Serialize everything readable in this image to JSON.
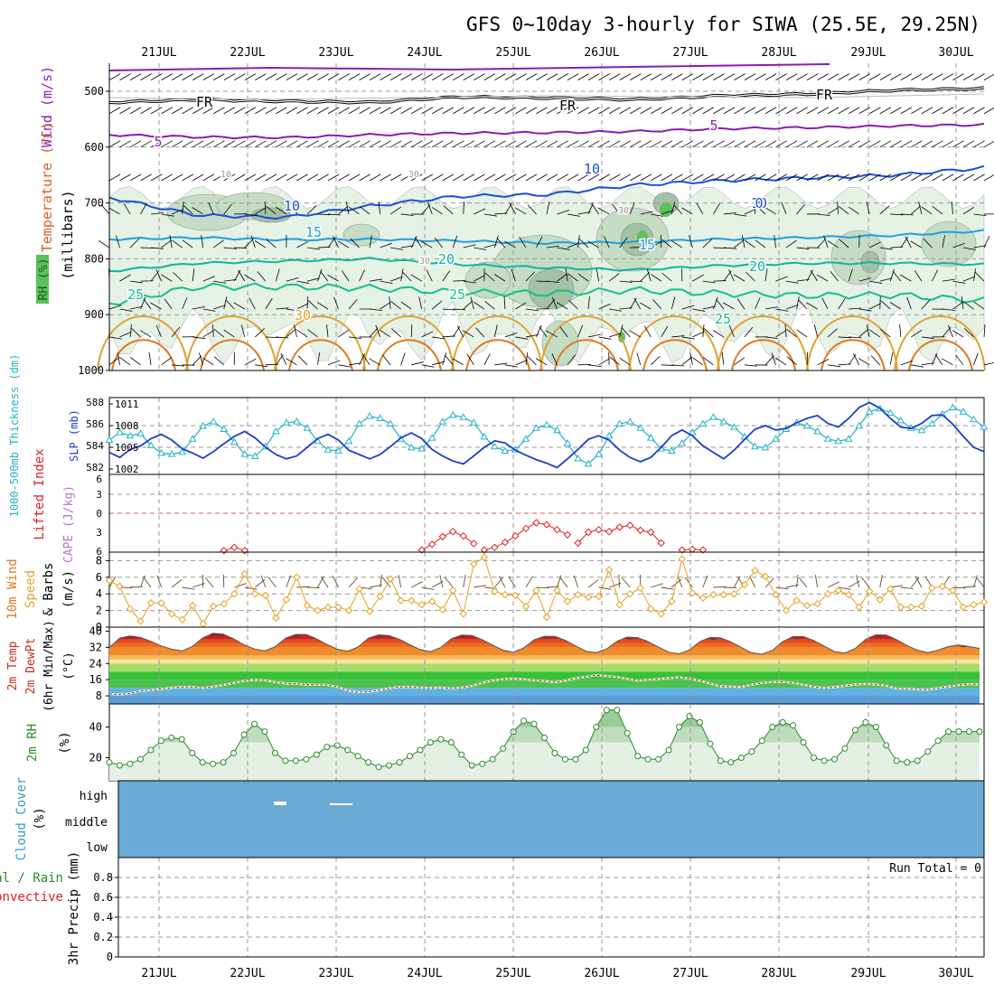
{
  "title": "GFS 0~10day 3-hourly for SIWA (25.5E, 29.25N)",
  "day_labels": [
    "21JUL",
    "22JUL",
    "23JUL",
    "24JUL",
    "25JUL",
    "26JUL",
    "27JUL",
    "28JUL",
    "29JUL",
    "30JUL"
  ],
  "colors": {
    "rh_fill_light": "#e5f2e5",
    "rh_fill_mid": "#c5dcc5",
    "rh_fill_dark": "#a3c1a3",
    "temp_contour_blue": "#1a4fd6",
    "temp_contour_light_blue": "#1f9ee0",
    "temp_contour_teal": "#12b3a0",
    "temp_contour_green": "#14c08a",
    "temp_contour_orange": "#e0a030",
    "temp_contour_darkorange": "#e07a20",
    "purple": "#8a1bb8",
    "slp_line": "#1c3fc8",
    "thickness_line": "#22b3c6",
    "lifted_index": "#e02020",
    "wind_speed": "#e8a020",
    "barb": "#6b4a2a",
    "dewpoint": "#a0522d",
    "rh2m": "#2b8a2b",
    "cloud": "#6aaad4"
  },
  "chart_data": [
    {
      "type": "heatmap",
      "panel": "upper-air",
      "ylabel": [
        "Temperature (°C)",
        "Wind (m/s)",
        "RH (%)",
        "(millibars)"
      ],
      "y_ticks": [
        500,
        600,
        700,
        800,
        900,
        1000
      ],
      "ylim": [
        1000,
        450
      ],
      "contour_labels": [
        "FR",
        "FR",
        "FR",
        "5",
        "5",
        "10",
        "10",
        "10",
        "15",
        "15",
        "20",
        "20",
        "25",
        "25",
        "25",
        "30",
        "10",
        "30",
        "30",
        "30",
        "0"
      ],
      "freezing_level_mb": [
        520,
        515,
        518,
        520,
        510,
        512,
        515,
        508,
        505,
        498,
        495
      ],
      "isotherm_5_mb": [
        578,
        582,
        583,
        578,
        575,
        574,
        572,
        567,
        565,
        562,
        560
      ],
      "isotherm_10_mb": [
        690,
        722,
        726,
        705,
        688,
        685,
        668,
        660,
        655,
        650,
        637
      ],
      "isotherm_15_mb": [
        765,
        762,
        766,
        765,
        768,
        772,
        770,
        765,
        762,
        758,
        750
      ],
      "isotherm_20_mb": [
        822,
        808,
        804,
        800,
        810,
        816,
        820,
        812,
        808,
        808,
        810
      ],
      "isotherm_25_mb": [
        880,
        850,
        850,
        852,
        860,
        862,
        856,
        862,
        866,
        865,
        875
      ]
    },
    {
      "type": "line",
      "panel": "thickness-slp",
      "ylabel_left": "1000-500mb Thickness (dm)",
      "ylabel_right": "SLP (mb)",
      "left_ticks": [
        582,
        584,
        586,
        588
      ],
      "right_ticks": [
        1002,
        1005,
        1008,
        1011
      ],
      "series": [
        {
          "name": "SLP (mb)",
          "axis": "right",
          "values": [
            1004.3,
            1003.6,
            1004.7,
            1005.2,
            1006.2,
            1006.8,
            1006.0,
            1004.8,
            1004.2,
            1003.5,
            1004.4,
            1005.5,
            1006.5,
            1007.2,
            1006.3,
            1005.0,
            1004.0,
            1003.4,
            1003.8,
            1005.0,
            1006.2,
            1006.8,
            1006.0,
            1004.6,
            1004.0,
            1003.4,
            1004.0,
            1005.1,
            1006.3,
            1007.0,
            1006.2,
            1004.7,
            1003.8,
            1003.1,
            1002.7,
            1003.8,
            1005.0,
            1005.9,
            1005.6,
            1004.6,
            1003.9,
            1003.3,
            1002.8,
            1002.2,
            1003.4,
            1004.7,
            1006.1,
            1006.6,
            1006.0,
            1004.6,
            1003.6,
            1003.0,
            1003.6,
            1005.0,
            1006.6,
            1007.4,
            1006.6,
            1005.2,
            1004.3,
            1003.4,
            1004.6,
            1006.1,
            1007.5,
            1008.0,
            1007.4,
            1007.6,
            1008.4,
            1009.0,
            1009.4,
            1008.3,
            1007.8,
            1009.0,
            1010.5,
            1011.2,
            1010.4,
            1009.0,
            1007.8,
            1007.6,
            1008.3,
            1009.4,
            1009.5,
            1008.2,
            1006.5,
            1005.0,
            1004.4
          ]
        },
        {
          "name": "1000-500mb Thickness (dm)",
          "axis": "left",
          "values": [
            584.5,
            585.2,
            584.9,
            585.1,
            584.0,
            583.3,
            583.2,
            583.4,
            584.6,
            585.8,
            586.2,
            585.5,
            584.3,
            583.2,
            583.0,
            583.9,
            585.3,
            586.1,
            586.2,
            585.6,
            584.4,
            583.6,
            583.5,
            584.4,
            586.0,
            586.7,
            586.5,
            586.0,
            584.6,
            583.8,
            583.7,
            584.7,
            586.2,
            586.8,
            586.6,
            586.1,
            584.8,
            583.9,
            583.5,
            583.6,
            584.6,
            585.6,
            585.9,
            585.4,
            584.2,
            582.8,
            582.3,
            583.2,
            584.9,
            586.0,
            586.2,
            585.6,
            584.7,
            583.7,
            583.5,
            584.2,
            585.2,
            586.0,
            586.6,
            586.2,
            585.7,
            584.8,
            583.9,
            583.8,
            584.6,
            585.5,
            586.1,
            585.8,
            585.3,
            584.6,
            584.4,
            584.6,
            585.8,
            587.1,
            587.4,
            587.0,
            586.3,
            585.6,
            585.4,
            586.0,
            586.9,
            587.5,
            587.1,
            586.4,
            585.7
          ]
        }
      ]
    },
    {
      "type": "line",
      "panel": "instability",
      "ylabel_left": "Lifted Index",
      "ylabel_right": "CAPE (J/kg)",
      "ticks": [
        6,
        3,
        0,
        3,
        6
      ],
      "dashed_zero_line": true,
      "lifted_index_segments": [
        {
          "start_step": 11,
          "values": [
            5.9,
            5.4,
            5.9
          ]
        },
        {
          "start_step": 30,
          "values": [
            5.8,
            4.9,
            3.7,
            2.9,
            3.6,
            4.8
          ]
        },
        {
          "start_step": 36,
          "values": [
            5.8,
            5.4,
            4.6,
            3.6,
            2.4,
            1.5,
            1.8,
            2.6,
            3.4
          ]
        },
        {
          "start_step": 45,
          "values": [
            4.7,
            3.0,
            2.6,
            2.9,
            2.2,
            1.9,
            2.7,
            3.0,
            4.7
          ]
        },
        {
          "start_step": 55,
          "values": [
            5.8,
            5.7,
            5.8
          ]
        }
      ]
    },
    {
      "type": "line",
      "panel": "10m-wind",
      "ylabel": [
        "10m Wind",
        "Speed",
        "& Barbs",
        "(m/s)"
      ],
      "y_ticks": [
        0,
        2,
        4,
        6,
        8
      ],
      "ylim": [
        0,
        9
      ],
      "series": [
        {
          "name": "10m Wind Speed",
          "values": [
            5.6,
            4.9,
            2.2,
            0.7,
            2.9,
            2.9,
            1.6,
            0.9,
            2.6,
            0.4,
            2.5,
            2.8,
            4.0,
            6.4,
            4.0,
            3.8,
            1.1,
            3.3,
            6.0,
            2.6,
            2.0,
            2.4,
            2.4,
            2.0,
            4.6,
            1.9,
            3.7,
            5.8,
            3.2,
            3.2,
            2.7,
            3.1,
            2.1,
            4.4,
            1.6,
            7.6,
            8.4,
            4.3,
            3.9,
            3.8,
            2.5,
            4.4,
            1.2,
            4.4,
            3.1,
            3.9,
            3.6,
            3.7,
            6.9,
            2.7,
            4.0,
            4.7,
            2.2,
            1.6,
            3.1,
            8.2,
            4.1,
            3.5,
            3.9,
            3.9,
            4.0,
            5.1,
            6.8,
            6.1,
            3.9,
            2.0,
            3.2,
            2.6,
            2.8,
            4.0,
            4.4,
            3.9,
            2.4,
            4.3,
            3.3,
            4.6,
            2.4,
            2.4,
            2.5,
            4.7,
            4.9,
            4.4,
            2.4,
            2.7,
            3.0
          ]
        }
      ]
    },
    {
      "type": "area",
      "panel": "2m-temp-dewpoint",
      "ylabel": [
        "2m Temp",
        "2m DewPt",
        "(6hr Min/Max)",
        "(°C)"
      ],
      "y_ticks": [
        8,
        16,
        24,
        32,
        40
      ],
      "ylim": [
        4,
        42
      ],
      "temperature_color_bands": [
        {
          "from": 4,
          "to": 8,
          "color": "#5a9ad6"
        },
        {
          "from": 8,
          "to": 12,
          "color": "#5fb3e0"
        },
        {
          "from": 12,
          "to": 16,
          "color": "#4cc24c"
        },
        {
          "from": 16,
          "to": 20,
          "color": "#36c236"
        },
        {
          "from": 20,
          "to": 24,
          "color": "#a8dc6a"
        },
        {
          "from": 24,
          "to": 26,
          "color": "#ffe5a0"
        },
        {
          "from": 26,
          "to": 28,
          "color": "#f7b85a"
        },
        {
          "from": 28,
          "to": 32,
          "color": "#f08c2a"
        },
        {
          "from": 32,
          "to": 34,
          "color": "#ef6a1c"
        },
        {
          "from": 34,
          "to": 36,
          "color": "#e24a1a"
        },
        {
          "from": 36,
          "to": 38,
          "color": "#c81e1e"
        },
        {
          "from": 38,
          "to": 42,
          "color": "#8b0e0e"
        }
      ],
      "series": [
        {
          "name": "2m Temp",
          "values": [
            32.0,
            36.6,
            37.6,
            36.9,
            35.0,
            32.7,
            31.1,
            30.2,
            32.4,
            36.6,
            38.9,
            38.5,
            36.2,
            33.3,
            31.2,
            30.3,
            32.2,
            36.5,
            38.4,
            38.4,
            36.2,
            33.4,
            31.1,
            30.1,
            32.1,
            36.5,
            38.2,
            37.8,
            36.0,
            33.3,
            30.9,
            29.9,
            31.9,
            36.2,
            38.1,
            37.9,
            35.8,
            33.1,
            30.6,
            29.6,
            31.7,
            35.7,
            37.5,
            37.4,
            35.5,
            32.7,
            30.1,
            29.4,
            31.2,
            35.0,
            37.1,
            36.8,
            34.9,
            32.1,
            29.6,
            28.8,
            30.7,
            34.8,
            36.9,
            36.7,
            34.7,
            31.9,
            29.3,
            28.6,
            30.5,
            34.8,
            37.3,
            37.3,
            35.4,
            32.6,
            29.9,
            29.2,
            31.4,
            35.9,
            38.2,
            38.1,
            35.8,
            32.9,
            30.6,
            29.4,
            30.6,
            32.4,
            33.2,
            32.4,
            31.5
          ]
        },
        {
          "name": "2m DewPt",
          "values": [
            9.0,
            8.6,
            9.2,
            10.4,
            10.8,
            11.4,
            12.0,
            12.4,
            12.3,
            11.9,
            12.6,
            13.3,
            14.4,
            15.3,
            15.9,
            15.7,
            14.8,
            14.1,
            14.0,
            13.6,
            13.5,
            13.5,
            12.4,
            10.7,
            9.8,
            10.0,
            10.7,
            11.8,
            12.4,
            12.3,
            12.1,
            11.9,
            12.1,
            11.7,
            12.1,
            12.9,
            14.4,
            15.6,
            16.2,
            16.5,
            16.1,
            15.7,
            15.3,
            14.7,
            15.5,
            16.7,
            17.4,
            18.2,
            17.8,
            17.3,
            16.4,
            15.5,
            16.0,
            16.3,
            16.8,
            17.2,
            16.5,
            15.5,
            14.1,
            12.7,
            12.6,
            12.4,
            13.5,
            14.4,
            14.8,
            14.9,
            14.4,
            13.5,
            12.5,
            11.9,
            12.3,
            13.0,
            13.6,
            13.9,
            13.6,
            13.0,
            11.6,
            11.6,
            11.1,
            11.0,
            11.8,
            12.6,
            13.3,
            13.8,
            13.6
          ]
        }
      ]
    },
    {
      "type": "area",
      "panel": "2m-rh",
      "ylabel": [
        "2m RH",
        "(%)"
      ],
      "y_ticks": [
        20,
        40
      ],
      "ylim": [
        5,
        55
      ],
      "series": [
        {
          "name": "2m RH",
          "values": [
            17,
            15,
            16,
            19,
            25,
            31,
            33,
            32,
            23,
            17,
            16,
            17,
            23,
            35,
            42,
            37,
            23,
            18,
            18,
            19,
            22,
            27,
            28,
            25,
            21,
            17,
            14,
            15,
            17,
            21,
            25,
            30,
            32,
            30,
            22,
            15,
            16,
            19,
            26,
            37,
            44,
            42,
            33,
            23,
            19,
            19,
            25,
            40,
            51,
            51,
            36,
            21,
            19,
            19,
            25,
            40,
            47,
            43,
            29,
            18,
            17,
            20,
            24,
            31,
            40,
            43,
            41,
            30,
            20,
            18,
            19,
            26,
            38,
            43,
            40,
            28,
            18,
            17,
            18,
            24,
            31,
            37,
            37,
            37,
            37
          ]
        }
      ]
    },
    {
      "type": "heatmap",
      "panel": "cloud-cover",
      "ylabel": [
        "Cloud Cover",
        "(%)"
      ],
      "y_ticks": [
        "high",
        "middle",
        "low"
      ],
      "note": "near-uniform cloud cover field across the period"
    },
    {
      "type": "bar",
      "panel": "precip",
      "ylabel_left": [
        "Total / Rain",
        "Convective"
      ],
      "ylabel": [
        "3hr Precip (mm)"
      ],
      "y_ticks": [
        0,
        0.2,
        0.4,
        0.6,
        0.8
      ],
      "ylim": [
        0,
        1.0
      ],
      "run_total_text": "Run Total = 0",
      "values": []
    }
  ]
}
